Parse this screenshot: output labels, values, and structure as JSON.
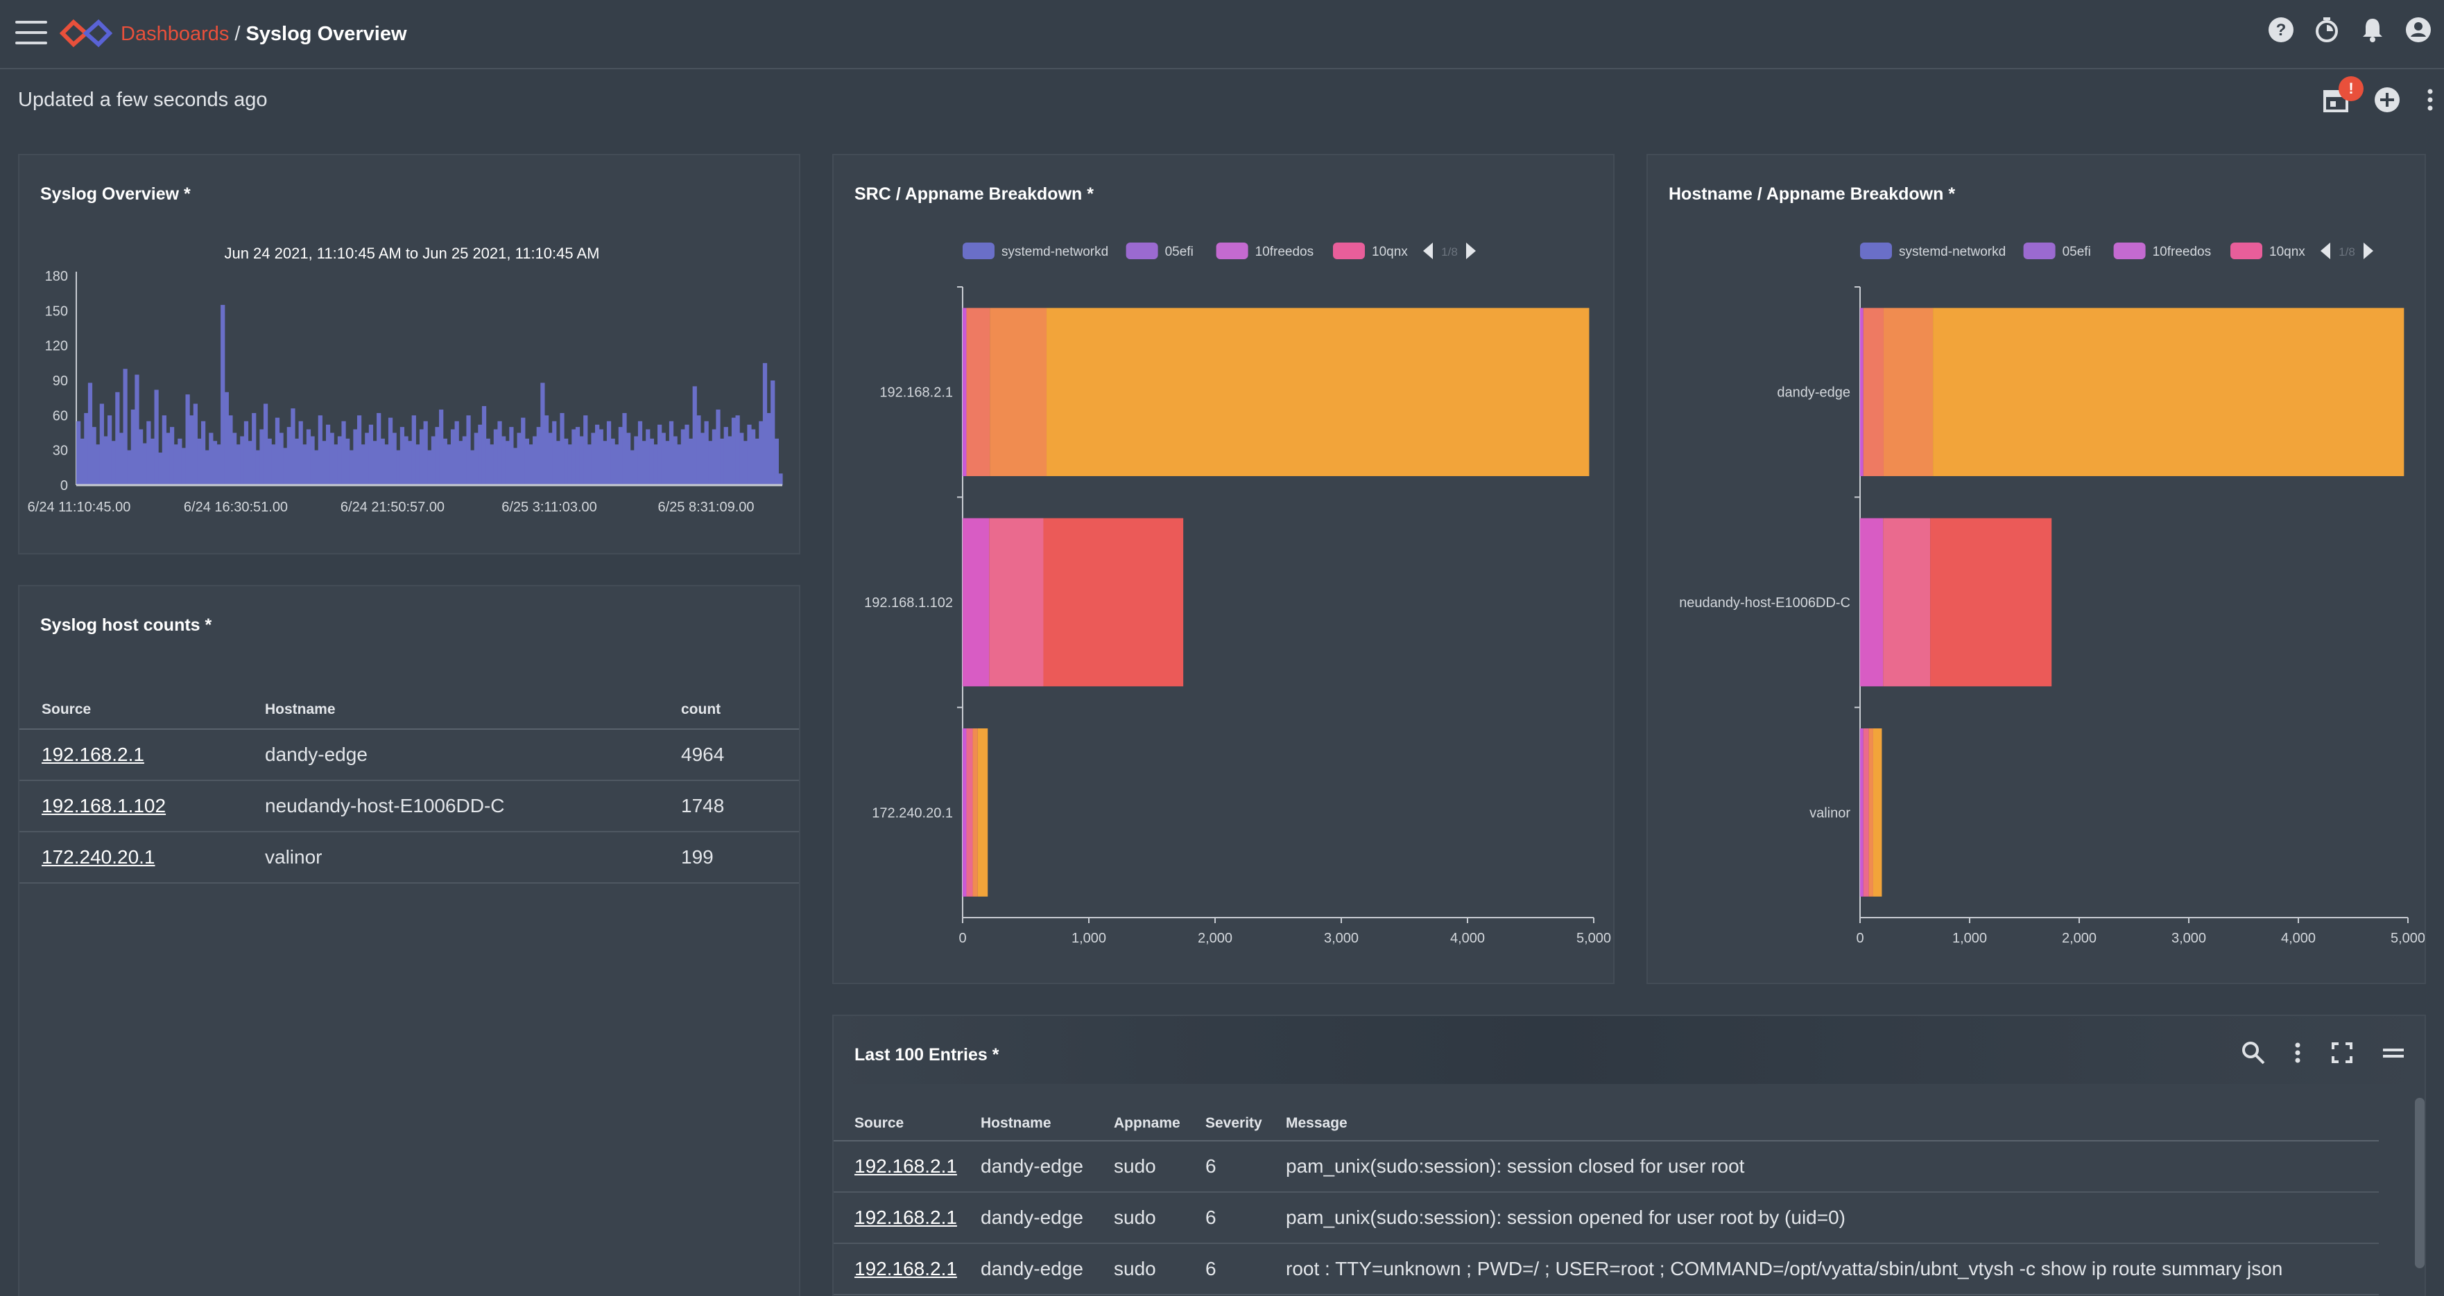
{
  "header": {
    "breadcrumb_link": "Dashboards",
    "breadcrumb_sep": "/",
    "breadcrumb_current": "Syslog Overview",
    "accent": "#e9503b"
  },
  "toolbar": {
    "updated_text": "Updated a few seconds ago",
    "notification_badge": "!"
  },
  "syslog_overview": {
    "title": "Syslog Overview *",
    "range": "Jun 24 2021, 11:10:45 AM to Jun 25 2021, 11:10:45 AM"
  },
  "host_counts": {
    "title": "Syslog host counts *",
    "columns": [
      "Source",
      "Hostname",
      "count"
    ],
    "rows": [
      {
        "source": "192.168.2.1",
        "hostname": "dandy-edge",
        "count": "4964"
      },
      {
        "source": "192.168.1.102",
        "hostname": "neudandy-host-E1006DD-C",
        "count": "1748"
      },
      {
        "source": "172.240.20.1",
        "hostname": "valinor",
        "count": "199"
      }
    ]
  },
  "src_breakdown": {
    "title": "SRC / Appname Breakdown *"
  },
  "host_breakdown": {
    "title": "Hostname / Appname Breakdown *"
  },
  "legend": {
    "items": [
      {
        "label": "systemd-networkd",
        "color": "#6a6fc8"
      },
      {
        "label": "05efi",
        "color": "#9b6ad0"
      },
      {
        "label": "10freedos",
        "color": "#c46ad0"
      },
      {
        "label": "10qnx",
        "color": "#e85e9a"
      }
    ],
    "page": "1/8"
  },
  "entries": {
    "title": "Last 100 Entries *",
    "columns": [
      "Source",
      "Hostname",
      "Appname",
      "Severity",
      "Message"
    ],
    "rows": [
      {
        "source": "192.168.2.1",
        "hostname": "dandy-edge",
        "appname": "sudo",
        "severity": "6",
        "message": "pam_unix(sudo:session): session closed for user root"
      },
      {
        "source": "192.168.2.1",
        "hostname": "dandy-edge",
        "appname": "sudo",
        "severity": "6",
        "message": "pam_unix(sudo:session): session opened for user root by (uid=0)"
      },
      {
        "source": "192.168.2.1",
        "hostname": "dandy-edge",
        "appname": "sudo",
        "severity": "6",
        "message": "root : TTY=unknown ; PWD=/ ; USER=root ; COMMAND=/opt/vyatta/sbin/ubnt_vtysh -c show ip route summary json"
      }
    ]
  },
  "chart_data": [
    {
      "type": "bar",
      "title": "Syslog Overview *",
      "subtitle": "Jun 24 2021, 11:10:45 AM to Jun 25 2021, 11:10:45 AM",
      "color": "#6a6fc8",
      "ylim": [
        0,
        180
      ],
      "yticks": [
        0,
        30,
        60,
        90,
        120,
        150,
        180
      ],
      "xtick_labels": [
        "6/24 11:10:45.00",
        "6/24 16:30:51.00",
        "6/24 21:50:57.00",
        "6/25 3:11:03.00",
        "6/25 8:31:09.00"
      ],
      "values": [
        55,
        40,
        62,
        88,
        50,
        35,
        70,
        42,
        60,
        38,
        80,
        45,
        100,
        30,
        65,
        95,
        48,
        36,
        55,
        40,
        82,
        28,
        60,
        45,
        50,
        35,
        40,
        32,
        78,
        60,
        70,
        40,
        55,
        30,
        45,
        38,
        35,
        155,
        80,
        60,
        45,
        35,
        42,
        55,
        38,
        62,
        30,
        48,
        70,
        40,
        35,
        58,
        45,
        32,
        50,
        66,
        40,
        55,
        35,
        48,
        42,
        30,
        60,
        38,
        52,
        45,
        35,
        42,
        55,
        40,
        30,
        48,
        60,
        35,
        45,
        52,
        38,
        62,
        40,
        35,
        58,
        45,
        30,
        50,
        42,
        38,
        60,
        35,
        48,
        55,
        30,
        42,
        50,
        65,
        40,
        35,
        48,
        55,
        38,
        42,
        60,
        30,
        45,
        52,
        68,
        40,
        35,
        48,
        55,
        42,
        38,
        50,
        32,
        45,
        58,
        40,
        35,
        42,
        50,
        88,
        60,
        45,
        55,
        38,
        62,
        40,
        35,
        48,
        50,
        42,
        60,
        35,
        45,
        52,
        48,
        38,
        55,
        40,
        35,
        50,
        62,
        45,
        30,
        42,
        55,
        38,
        48,
        40,
        35,
        52,
        45,
        38,
        55,
        42,
        35,
        48,
        52,
        40,
        85,
        60,
        45,
        55,
        38,
        48,
        65,
        40,
        50,
        42,
        58,
        60,
        45,
        38,
        52,
        48,
        40,
        55,
        105,
        62,
        90,
        40,
        10
      ]
    },
    {
      "type": "bar",
      "orientation": "horizontal",
      "stacked": true,
      "title": "SRC / Appname Breakdown *",
      "categories": [
        "192.168.2.1",
        "192.168.1.102",
        "172.240.20.1"
      ],
      "xlim": [
        0,
        5000
      ],
      "xticks": [
        "0",
        "1,000",
        "2,000",
        "3,000",
        "4,000",
        "5,000"
      ],
      "stacks": [
        [
          {
            "value": 30,
            "color": "#c95ad6"
          },
          {
            "value": 185,
            "color": "#ee7a62"
          },
          {
            "value": 450,
            "color": "#f08c50"
          },
          {
            "value": 4299,
            "color": "#f2a43a"
          }
        ],
        [
          {
            "value": 210,
            "color": "#d85cc4"
          },
          {
            "value": 430,
            "color": "#ea6a8e"
          },
          {
            "value": 1108,
            "color": "#eb5a58"
          }
        ],
        [
          {
            "value": 30,
            "color": "#c95ad6"
          },
          {
            "value": 50,
            "color": "#ea6a8e"
          },
          {
            "value": 40,
            "color": "#f08c50"
          },
          {
            "value": 79,
            "color": "#f2a43a"
          }
        ]
      ]
    },
    {
      "type": "bar",
      "orientation": "horizontal",
      "stacked": true,
      "title": "Hostname / Appname Breakdown *",
      "categories": [
        "dandy-edge",
        "neudandy-host-E1006DD-C",
        "valinor"
      ],
      "xlim": [
        0,
        5000
      ],
      "xticks": [
        "0",
        "1,000",
        "2,000",
        "3,000",
        "4,000",
        "5,000"
      ],
      "stacks": [
        [
          {
            "value": 30,
            "color": "#c95ad6"
          },
          {
            "value": 185,
            "color": "#ee7a62"
          },
          {
            "value": 450,
            "color": "#f08c50"
          },
          {
            "value": 4299,
            "color": "#f2a43a"
          }
        ],
        [
          {
            "value": 210,
            "color": "#d85cc4"
          },
          {
            "value": 430,
            "color": "#ea6a8e"
          },
          {
            "value": 1108,
            "color": "#eb5a58"
          }
        ],
        [
          {
            "value": 30,
            "color": "#c95ad6"
          },
          {
            "value": 50,
            "color": "#ea6a8e"
          },
          {
            "value": 40,
            "color": "#f08c50"
          },
          {
            "value": 79,
            "color": "#f2a43a"
          }
        ]
      ]
    }
  ]
}
